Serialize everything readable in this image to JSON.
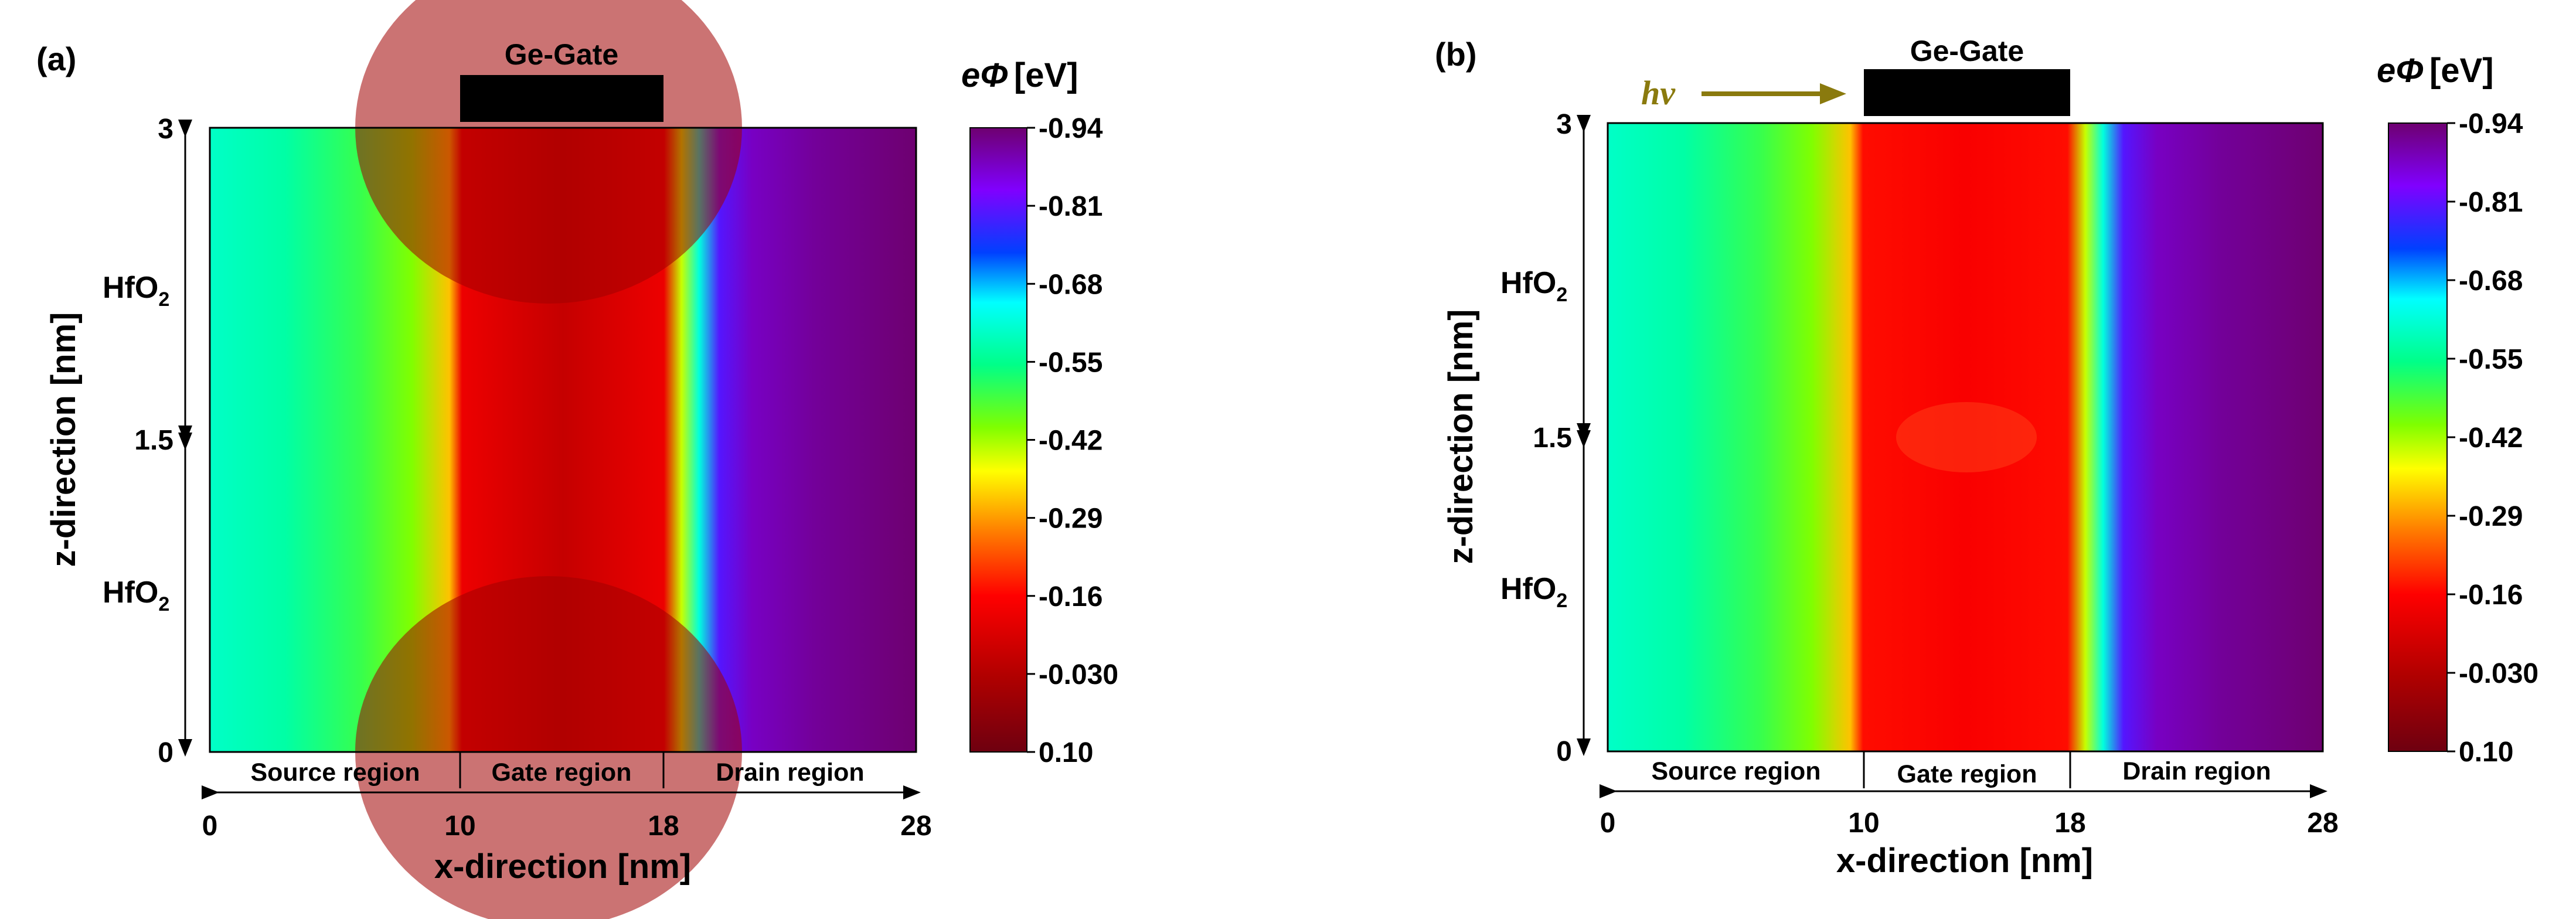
{
  "chart_data": [
    {
      "type": "heatmap",
      "panel_label": "(a)",
      "title": "",
      "xlabel": "x-direction [nm]",
      "ylabel": "z-direction [nm]",
      "xlim": [
        0,
        28
      ],
      "ylim": [
        0,
        3
      ],
      "x_ticks": [
        "0",
        "10",
        "18",
        "28"
      ],
      "y_ticks": [
        "0",
        "1.5",
        "3"
      ],
      "gate_label": "Ge-Gate",
      "gate_x_range": [
        10,
        18
      ],
      "oxide_labels": [
        {
          "text": "HfO",
          "sub": "2",
          "z": 2.2
        },
        {
          "text": "HfO",
          "sub": "2",
          "z": 0.75
        }
      ],
      "regions": [
        {
          "label": "Source region",
          "x_range": [
            0,
            10
          ]
        },
        {
          "label": "Gate region",
          "x_range": [
            10,
            18
          ]
        },
        {
          "label": "Drain region",
          "x_range": [
            18,
            28
          ]
        }
      ],
      "illumination": null,
      "colorbar": {
        "title_italic": "eΦ",
        "title_unit": "[eV]",
        "ticks": [
          "-0.94",
          "-0.81",
          "-0.68",
          "-0.55",
          "-0.42",
          "-0.29",
          "-0.16",
          "-0.030",
          "0.10"
        ],
        "range": [
          -0.94,
          0.1
        ]
      },
      "potential_profile_eV": {
        "x_nm": [
          0,
          3,
          6,
          8,
          9.5,
          10,
          14,
          18,
          18.7,
          19.4,
          20.2,
          21.5,
          24,
          28
        ],
        "value": [
          -0.6,
          -0.57,
          -0.5,
          -0.44,
          -0.32,
          -0.13,
          -0.06,
          -0.13,
          -0.4,
          -0.62,
          -0.8,
          -0.88,
          -0.91,
          -0.94
        ]
      }
    },
    {
      "type": "heatmap",
      "panel_label": "(b)",
      "title": "",
      "xlabel": "x-direction [nm]",
      "ylabel": "z-direction [nm]",
      "xlim": [
        0,
        28
      ],
      "ylim": [
        0,
        3
      ],
      "x_ticks": [
        "0",
        "10",
        "18",
        "28"
      ],
      "y_ticks": [
        "0",
        "1.5",
        "3"
      ],
      "gate_label": "Ge-Gate",
      "gate_x_range": [
        10,
        18
      ],
      "oxide_labels": [
        {
          "text": "HfO",
          "sub": "2",
          "z": 2.2
        },
        {
          "text": "HfO",
          "sub": "2",
          "z": 0.75
        }
      ],
      "regions": [
        {
          "label": "Source region",
          "x_range": [
            0,
            10
          ]
        },
        {
          "label": "Gate region",
          "x_range": [
            10,
            18
          ]
        },
        {
          "label": "Drain region",
          "x_range": [
            18,
            28
          ]
        }
      ],
      "illumination": "hν",
      "colorbar": {
        "title_italic": "eΦ",
        "title_unit": "[eV]",
        "ticks": [
          "-0.94",
          "-0.81",
          "-0.68",
          "-0.55",
          "-0.42",
          "-0.29",
          "-0.16",
          "-0.030",
          "0.10"
        ],
        "range": [
          -0.94,
          0.1
        ]
      },
      "potential_profile_eV": {
        "x_nm": [
          0,
          3,
          6,
          8,
          9.5,
          10,
          14,
          18,
          18.7,
          19.4,
          20.2,
          21.5,
          24,
          28
        ],
        "value": [
          -0.6,
          -0.57,
          -0.5,
          -0.44,
          -0.32,
          -0.17,
          -0.15,
          -0.17,
          -0.4,
          -0.62,
          -0.8,
          -0.88,
          -0.91,
          -0.94
        ]
      }
    }
  ],
  "colormap": [
    "#6e0010",
    "#b00000",
    "#ff0000",
    "#ff7a00",
    "#ffff00",
    "#7fff00",
    "#00ff88",
    "#00ffff",
    "#0040ff",
    "#8000ff",
    "#6e0070"
  ]
}
